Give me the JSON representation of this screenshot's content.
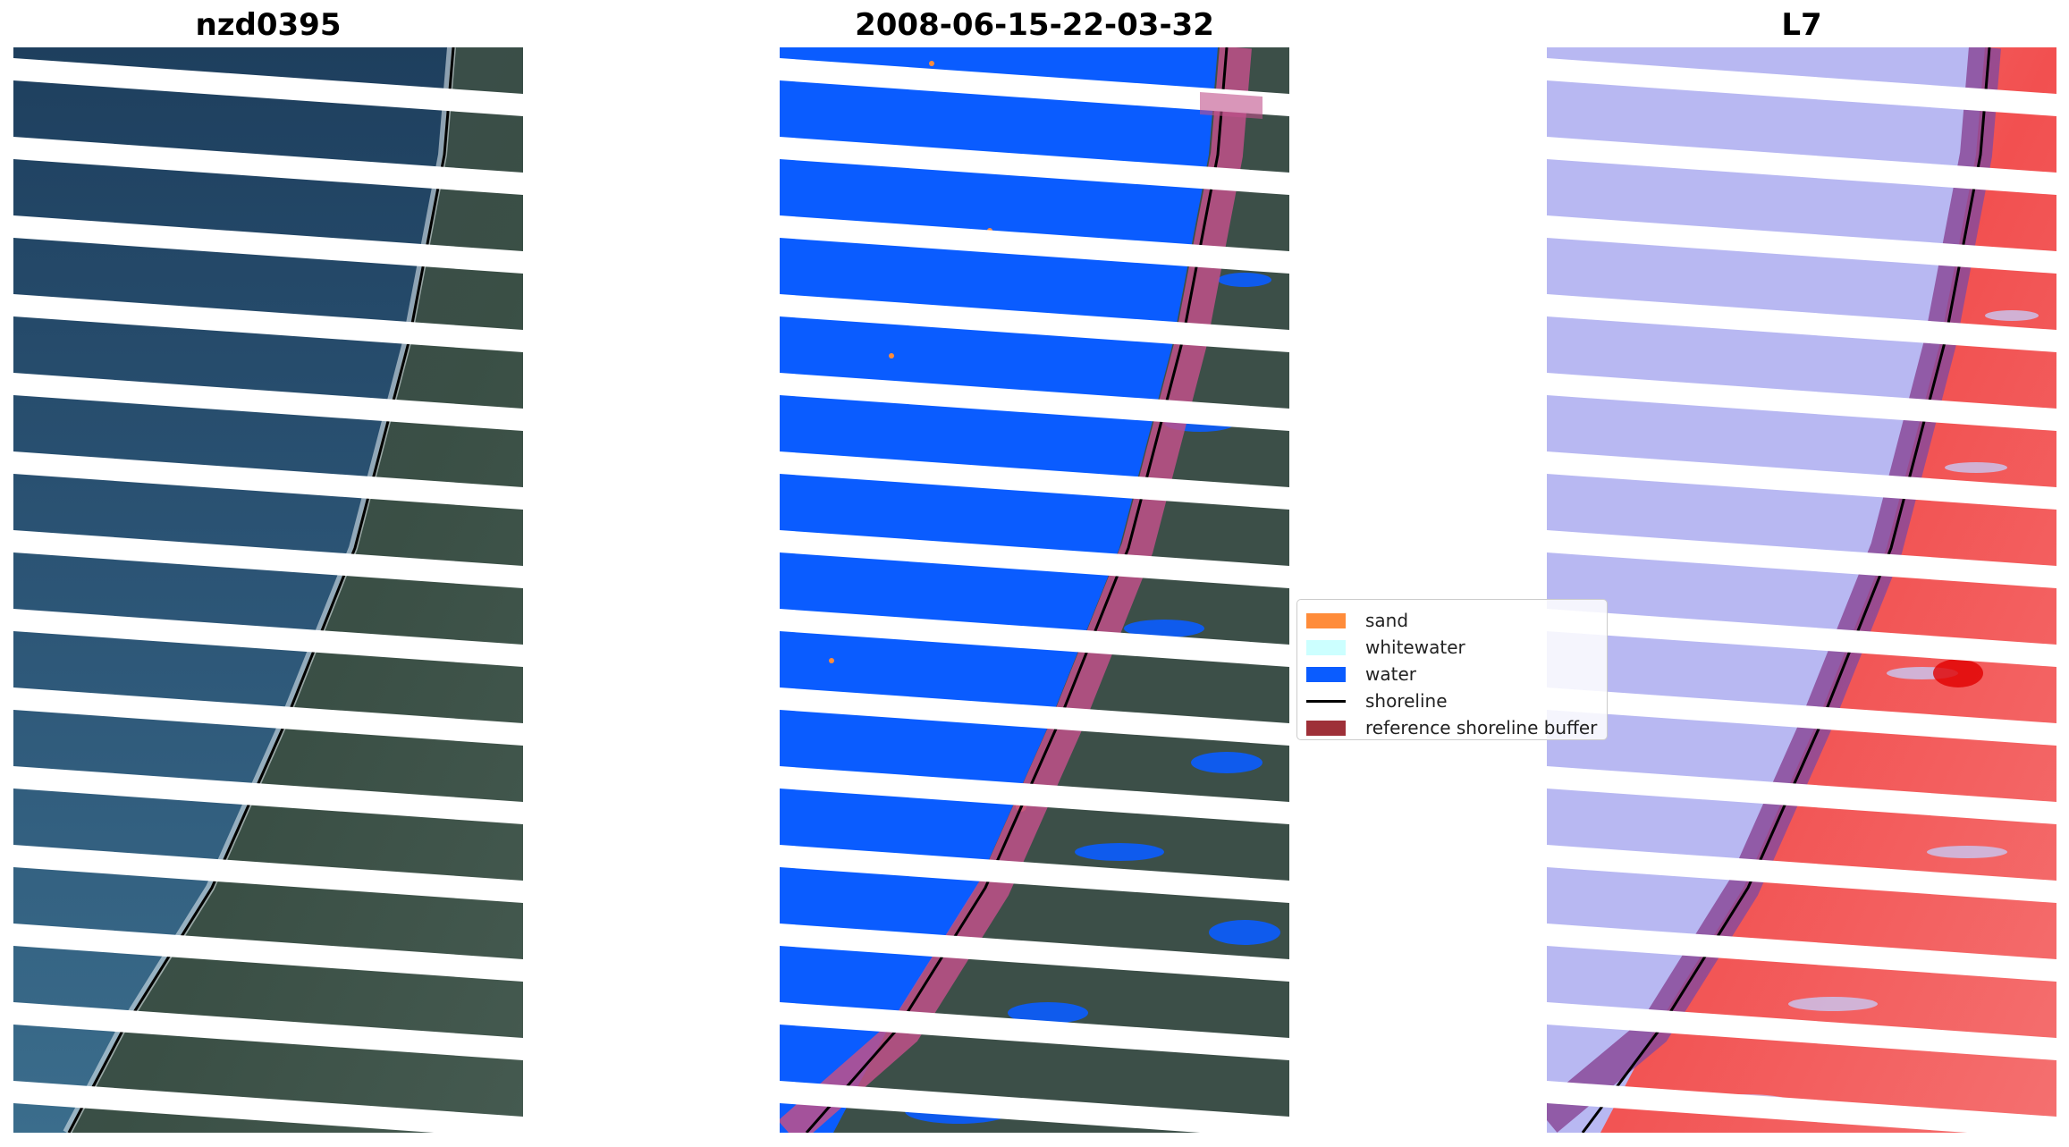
{
  "panels": [
    {
      "title": "nzd0395"
    },
    {
      "title": "2008-06-15-22-03-32"
    },
    {
      "title": "L7"
    }
  ],
  "legend": {
    "items": [
      {
        "label": "sand",
        "color": "#ff8c3a",
        "kind": "patch"
      },
      {
        "label": "whitewater",
        "color": "#ccffff",
        "kind": "patch"
      },
      {
        "label": "water",
        "color": "#0a5cff",
        "kind": "patch"
      },
      {
        "label": "shoreline",
        "color": "#000000",
        "kind": "line"
      },
      {
        "label": "reference shoreline buffer",
        "color": "#9e3038",
        "kind": "patch"
      }
    ]
  },
  "colors": {
    "ocean": "#2c5576",
    "land": "#3a4d4a",
    "water_class": "#0a5cff",
    "buffer": "#c0508a",
    "index_water": "#b8b8f2",
    "index_land": "#f26060",
    "stripe_gap": "#ffffff"
  }
}
